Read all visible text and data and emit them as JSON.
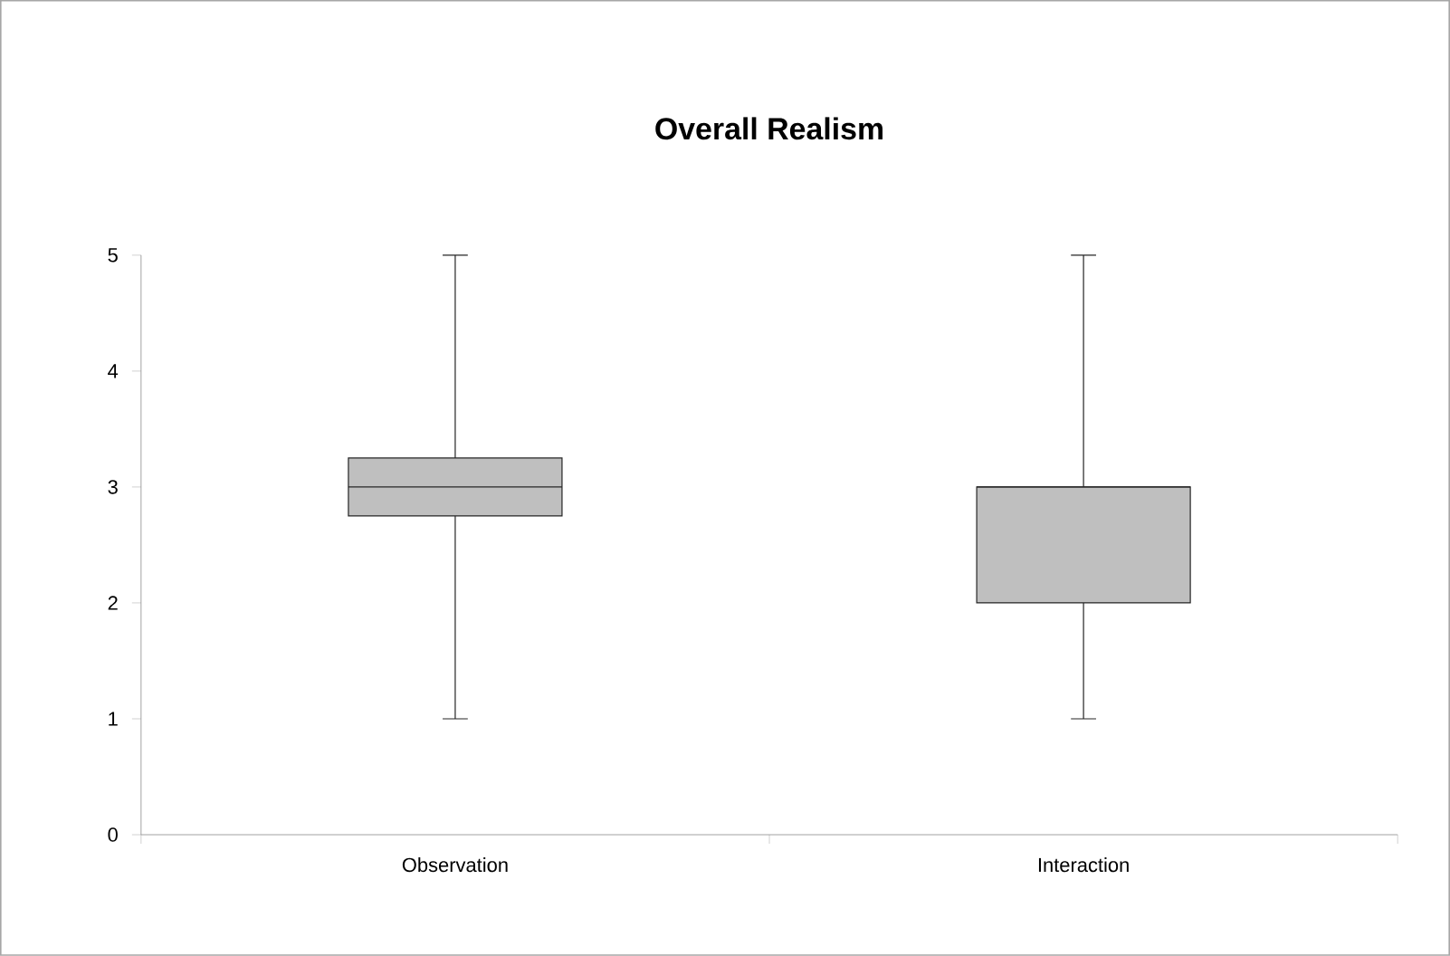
{
  "chart_data": {
    "type": "box",
    "title": "Overall Realism",
    "categories": [
      "Observation",
      "Interaction"
    ],
    "boxes": [
      {
        "low": 1,
        "q1": 2.75,
        "median": 3,
        "q3": 3.25,
        "high": 5
      },
      {
        "low": 1,
        "q1": 2,
        "median": 3,
        "q3": 3,
        "high": 5
      }
    ],
    "color": "#bfbfbf",
    "ylim": [
      0,
      5
    ],
    "yticks": [
      0,
      1,
      2,
      3,
      4,
      5
    ],
    "grid": false
  }
}
